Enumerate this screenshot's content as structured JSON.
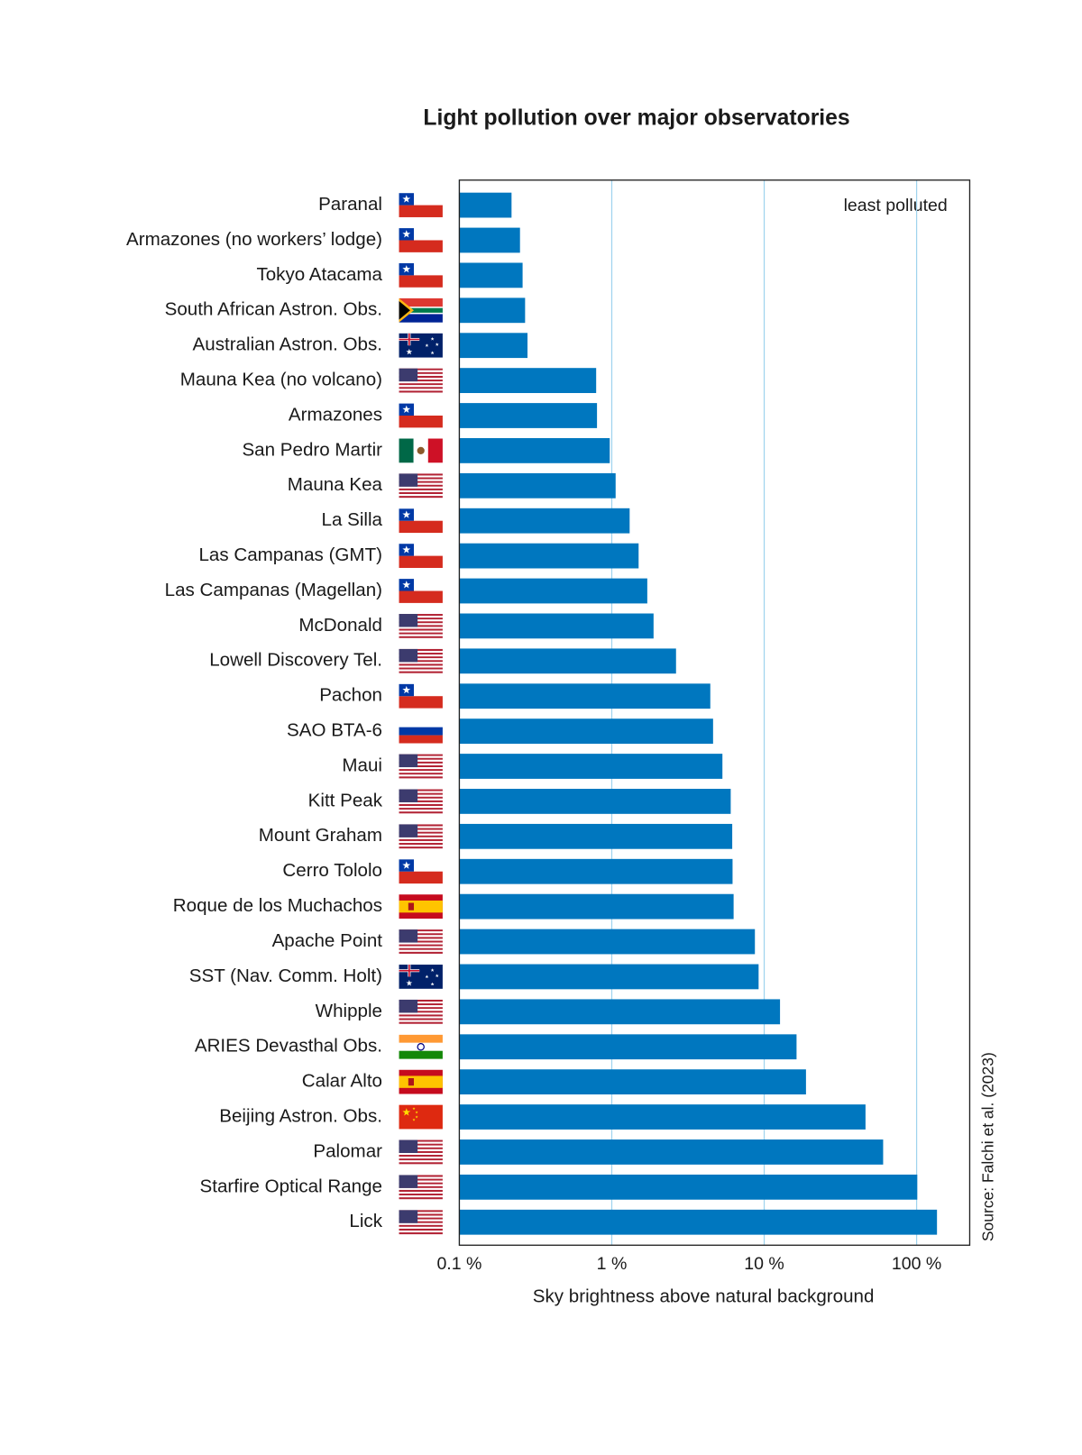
{
  "chart_data": {
    "type": "bar",
    "orientation": "horizontal",
    "title": "Light pollution over major observatories",
    "xlabel": "Sky brightness above natural background",
    "annotation": "least polluted",
    "source": "Source: Falchi et al. (2023)",
    "log_scale": true,
    "grid": true,
    "color": "#0077bf",
    "categories": [
      "Paranal",
      "Armazones (no workers’ lodge)",
      "Tokyo Atacama",
      "South African Astron. Obs.",
      "Australian Astron. Obs.",
      "Mauna Kea (no volcano)",
      "Armazones",
      "San Pedro Martir",
      "Mauna Kea",
      "La Silla",
      "Las Campanas (GMT)",
      "Las Campanas (Magellan)",
      "McDonald",
      "Lowell Discovery Tel.",
      "Pachon",
      "SAO BTA-6",
      "Maui",
      "Kitt Peak",
      "Mount Graham",
      "Cerro Tololo",
      "Roque de los Muchachos",
      "Apache Point",
      "SST (Nav. Comm. Holt)",
      "Whipple",
      "ARIES Devasthal Obs.",
      "Calar Alto",
      "Beijing Astron. Obs.",
      "Palomar",
      "Starfire Optical Range",
      "Lick"
    ],
    "values": [
      0.22,
      0.25,
      0.26,
      0.27,
      0.28,
      0.79,
      0.8,
      0.97,
      1.06,
      1.31,
      1.5,
      1.71,
      1.88,
      2.64,
      4.43,
      4.62,
      5.32,
      6.03,
      6.17,
      6.2,
      6.3,
      8.69,
      9.19,
      12.7,
      16.3,
      18.8,
      46.2,
      60.3,
      101,
      136
    ],
    "xlim": [
      0.1,
      223
    ],
    "xticks": [
      {
        "value": 0.1,
        "label": "0.1 %"
      },
      {
        "value": 1,
        "label": "1 %"
      },
      {
        "value": 10,
        "label": "10 %"
      },
      {
        "value": 100,
        "label": "100 %"
      }
    ]
  }
}
